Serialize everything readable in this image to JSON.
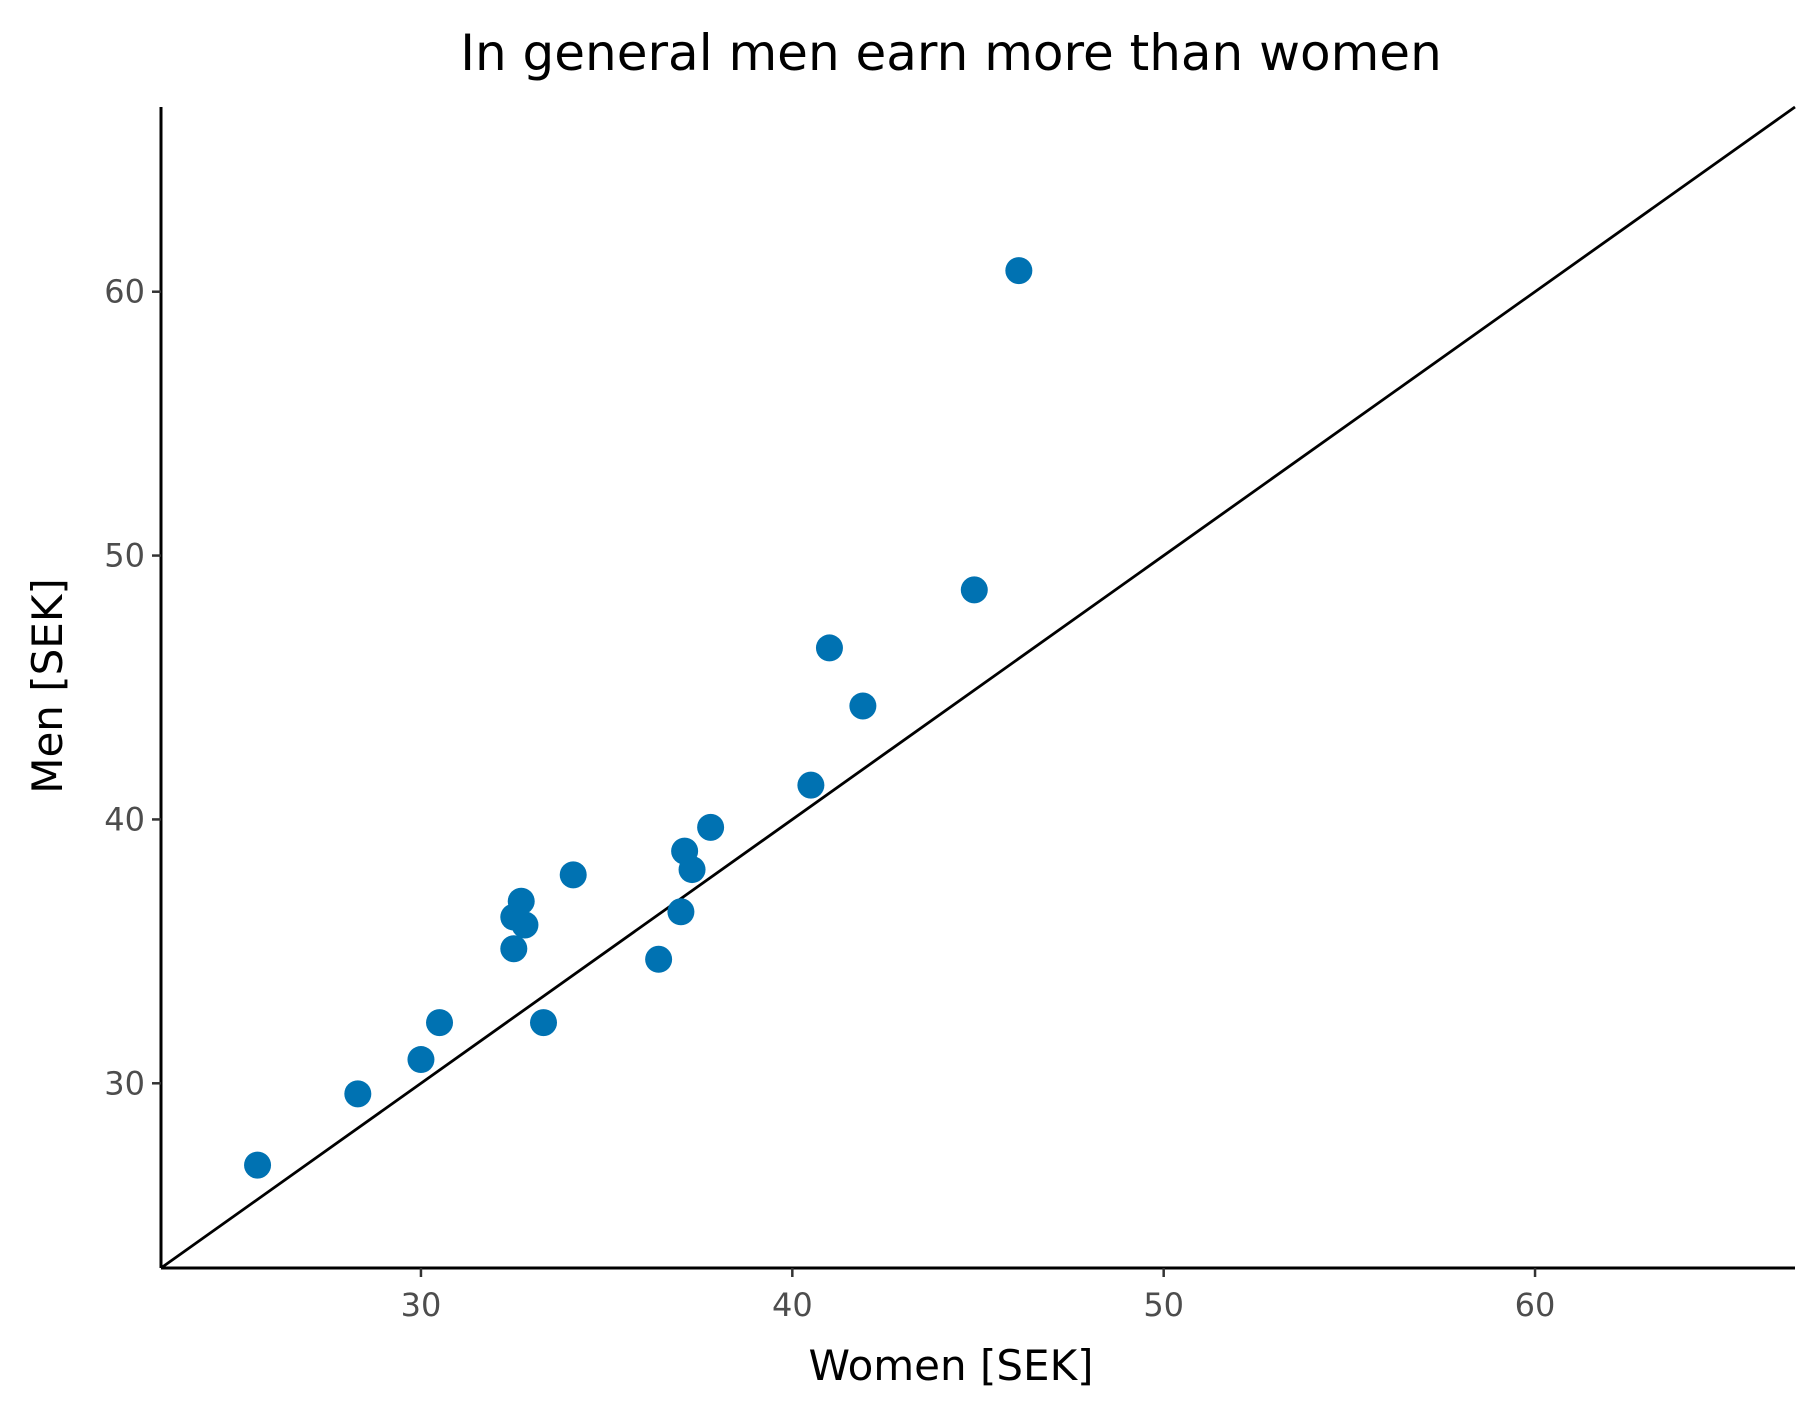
{
  "chart_data": {
    "type": "scatter",
    "title": "In general men earn more than women",
    "xlabel": "Women [SEK]",
    "ylabel": "Men [SEK]",
    "xlim": [
      23,
      67
    ],
    "ylim": [
      23,
      67
    ],
    "x_ticks": [
      30,
      40,
      50,
      60
    ],
    "y_ticks": [
      30,
      40,
      50,
      60
    ],
    "grid": false,
    "reference_line": "y = x",
    "point_color": "#0072b2",
    "points": [
      {
        "x": 25.6,
        "y": 26.9
      },
      {
        "x": 28.3,
        "y": 29.6
      },
      {
        "x": 30.0,
        "y": 30.9
      },
      {
        "x": 30.5,
        "y": 32.3
      },
      {
        "x": 32.5,
        "y": 35.1
      },
      {
        "x": 32.5,
        "y": 36.3
      },
      {
        "x": 32.7,
        "y": 36.9
      },
      {
        "x": 32.8,
        "y": 36.0
      },
      {
        "x": 33.3,
        "y": 32.3
      },
      {
        "x": 34.1,
        "y": 37.9
      },
      {
        "x": 36.4,
        "y": 34.7
      },
      {
        "x": 37.0,
        "y": 36.5
      },
      {
        "x": 37.1,
        "y": 38.8
      },
      {
        "x": 37.3,
        "y": 38.1
      },
      {
        "x": 37.8,
        "y": 39.7
      },
      {
        "x": 40.5,
        "y": 41.3
      },
      {
        "x": 41.0,
        "y": 46.5
      },
      {
        "x": 41.9,
        "y": 44.3
      },
      {
        "x": 44.9,
        "y": 48.7
      },
      {
        "x": 46.1,
        "y": 60.8
      }
    ]
  }
}
